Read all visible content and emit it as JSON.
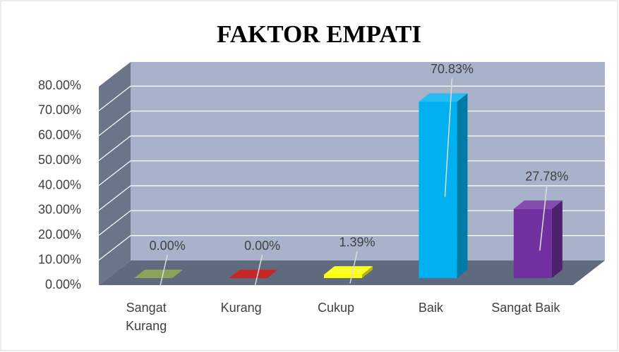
{
  "chart_data": {
    "type": "bar3d",
    "title": "FAKTOR EMPATI",
    "categories": [
      "Sangat Kurang",
      "Kurang",
      "Cukup",
      "Baik",
      "Sangat Baik"
    ],
    "values": [
      0,
      0,
      1.39,
      70.83,
      27.78
    ],
    "value_labels": [
      "0.00%",
      "0.00%",
      "1.39%",
      "70.83%",
      "27.78%"
    ],
    "colors": [
      "#77933c",
      "#c00000",
      "#ffff00",
      "#00b0f0",
      "#7030a0"
    ],
    "ylim": [
      0,
      80
    ],
    "yticks": [
      {
        "value": 0,
        "label": "0.00%"
      },
      {
        "value": 10,
        "label": "10.00%"
      },
      {
        "value": 20,
        "label": "20.00%"
      },
      {
        "value": 30,
        "label": "30.00%"
      },
      {
        "value": 40,
        "label": "40.00%"
      },
      {
        "value": 50,
        "label": "50.00%"
      },
      {
        "value": 60,
        "label": "60.00%"
      },
      {
        "value": 70,
        "label": "70.00%"
      },
      {
        "value": 80,
        "label": "80.00%"
      }
    ],
    "grid": true
  }
}
